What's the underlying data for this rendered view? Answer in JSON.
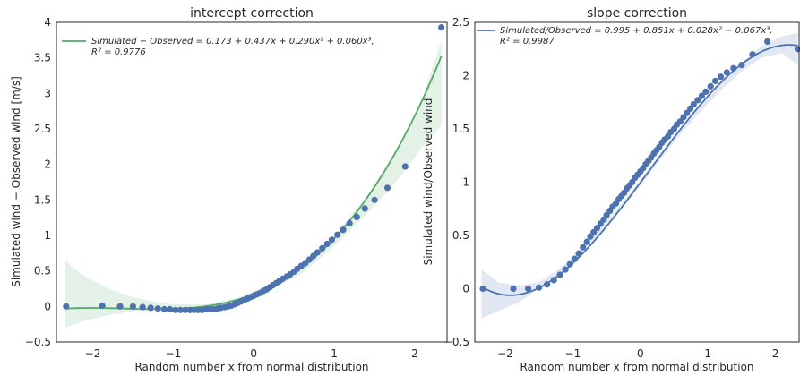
{
  "chart_data": [
    {
      "type": "scatter",
      "title": "intercept correction",
      "xlabel": "Random number x from normal distribution",
      "ylabel": "Simulated wind − Observed wind [m/s]",
      "xlim": [
        -2.45,
        2.4
      ],
      "ylim": [
        -0.5,
        4.0
      ],
      "xticks": [
        -2,
        -1,
        0,
        1,
        2
      ],
      "yticks": [
        -0.5,
        0.0,
        0.5,
        1.0,
        1.5,
        2.0,
        2.5,
        3.0,
        3.5,
        4.0
      ],
      "grid": false,
      "legend_position": "top-left",
      "colors": {
        "points": "#4c72b0",
        "fit": "#55a868",
        "band": "#55a868"
      },
      "fit": {
        "label": "Simulated − Observed = 0.173 + 0.437x + 0.290x² + 0.060x³,",
        "r2_label": "R² = 0.9776",
        "coefficients": [
          0.173,
          0.437,
          0.29,
          0.06
        ]
      },
      "band": {
        "x": [
          -2.35,
          -2.1,
          -1.8,
          -1.5,
          -1.2,
          -1.0,
          -0.6,
          -0.2,
          0.2,
          0.6,
          1.0,
          1.4,
          1.8,
          2.1,
          2.33
        ],
        "lower": [
          -0.3,
          -0.2,
          -0.12,
          -0.07,
          -0.05,
          -0.05,
          -0.02,
          0.06,
          0.24,
          0.46,
          0.85,
          1.3,
          1.8,
          2.25,
          2.55
        ],
        "upper": [
          0.65,
          0.42,
          0.25,
          0.13,
          0.06,
          0.03,
          0.03,
          0.12,
          0.31,
          0.6,
          1.0,
          1.55,
          2.25,
          2.95,
          3.75
        ]
      },
      "points": {
        "x": [
          -2.33,
          -1.88,
          -1.66,
          -1.5,
          -1.38,
          -1.28,
          -1.19,
          -1.11,
          -1.04,
          -0.97,
          -0.91,
          -0.85,
          -0.79,
          -0.74,
          -0.69,
          -0.64,
          -0.59,
          -0.54,
          -0.5,
          -0.45,
          -0.41,
          -0.36,
          -0.32,
          -0.28,
          -0.24,
          -0.2,
          -0.16,
          -0.12,
          -0.08,
          -0.04,
          0.0,
          0.04,
          0.08,
          0.12,
          0.16,
          0.2,
          0.24,
          0.28,
          0.32,
          0.36,
          0.41,
          0.45,
          0.5,
          0.54,
          0.59,
          0.64,
          0.69,
          0.74,
          0.79,
          0.85,
          0.91,
          0.97,
          1.04,
          1.11,
          1.19,
          1.28,
          1.38,
          1.5,
          1.66,
          1.88,
          2.33
        ],
        "y": [
          0.0,
          0.01,
          0.0,
          0.0,
          -0.01,
          -0.02,
          -0.03,
          -0.04,
          -0.04,
          -0.05,
          -0.05,
          -0.05,
          -0.05,
          -0.05,
          -0.05,
          -0.05,
          -0.04,
          -0.04,
          -0.04,
          -0.03,
          -0.02,
          -0.01,
          0.0,
          0.01,
          0.03,
          0.05,
          0.07,
          0.09,
          0.11,
          0.13,
          0.15,
          0.17,
          0.19,
          0.22,
          0.24,
          0.27,
          0.3,
          0.33,
          0.36,
          0.39,
          0.42,
          0.45,
          0.49,
          0.53,
          0.57,
          0.61,
          0.66,
          0.71,
          0.76,
          0.82,
          0.88,
          0.94,
          1.01,
          1.08,
          1.17,
          1.26,
          1.38,
          1.5,
          1.67,
          1.97,
          3.93
        ]
      }
    },
    {
      "type": "scatter",
      "title": "slope correction",
      "xlabel": "Random number x from normal distribution",
      "ylabel": "Simulated wind/Observed wind",
      "xlim": [
        -2.45,
        2.35
      ],
      "ylim": [
        -0.5,
        2.5
      ],
      "xticks": [
        -2,
        -1,
        0,
        1,
        2
      ],
      "yticks": [
        -0.5,
        0.0,
        0.5,
        1.0,
        1.5,
        2.0,
        2.5
      ],
      "grid": false,
      "legend_position": "top-left",
      "colors": {
        "points": "#4c72b0",
        "fit": "#4c72b0",
        "band": "#4c72b0"
      },
      "fit": {
        "label": "Simulated/Observed = 0.995 + 0.851x + 0.028x² − 0.067x³,",
        "r2_label": "R² = 0.9987",
        "coefficients": [
          0.995,
          0.851,
          0.028,
          -0.067
        ]
      },
      "band": {
        "x": [
          -2.35,
          -2.1,
          -1.8,
          -1.5,
          -1.2,
          -0.9,
          -0.5,
          0.0,
          0.5,
          0.9,
          1.2,
          1.5,
          1.8,
          2.1,
          2.33
        ],
        "lower": [
          -0.28,
          -0.21,
          -0.13,
          0.0,
          0.14,
          0.32,
          0.58,
          0.97,
          1.38,
          1.67,
          1.87,
          2.04,
          2.17,
          2.21,
          2.1
        ],
        "upper": [
          0.18,
          0.06,
          0.03,
          0.06,
          0.19,
          0.37,
          0.63,
          1.02,
          1.43,
          1.73,
          1.94,
          2.12,
          2.28,
          2.37,
          2.4
        ]
      },
      "points": {
        "x": [
          -2.33,
          -1.88,
          -1.66,
          -1.5,
          -1.38,
          -1.28,
          -1.19,
          -1.11,
          -1.04,
          -0.97,
          -0.91,
          -0.85,
          -0.79,
          -0.74,
          -0.69,
          -0.64,
          -0.59,
          -0.54,
          -0.5,
          -0.45,
          -0.41,
          -0.36,
          -0.32,
          -0.28,
          -0.24,
          -0.2,
          -0.16,
          -0.12,
          -0.08,
          -0.04,
          0.0,
          0.04,
          0.08,
          0.12,
          0.16,
          0.2,
          0.24,
          0.28,
          0.32,
          0.36,
          0.41,
          0.45,
          0.5,
          0.54,
          0.59,
          0.64,
          0.69,
          0.74,
          0.79,
          0.85,
          0.91,
          0.97,
          1.04,
          1.11,
          1.19,
          1.28,
          1.38,
          1.5,
          1.66,
          1.88,
          2.33
        ],
        "y": [
          0.0,
          0.0,
          0.0,
          0.01,
          0.04,
          0.08,
          0.13,
          0.18,
          0.23,
          0.28,
          0.33,
          0.39,
          0.44,
          0.49,
          0.53,
          0.57,
          0.61,
          0.65,
          0.69,
          0.73,
          0.77,
          0.8,
          0.84,
          0.87,
          0.9,
          0.94,
          0.97,
          1.0,
          1.04,
          1.07,
          1.1,
          1.13,
          1.17,
          1.2,
          1.23,
          1.27,
          1.3,
          1.33,
          1.37,
          1.4,
          1.43,
          1.47,
          1.5,
          1.54,
          1.57,
          1.61,
          1.65,
          1.69,
          1.73,
          1.77,
          1.81,
          1.85,
          1.9,
          1.95,
          1.99,
          2.03,
          2.07,
          2.1,
          2.2,
          2.32,
          2.25
        ]
      }
    }
  ]
}
